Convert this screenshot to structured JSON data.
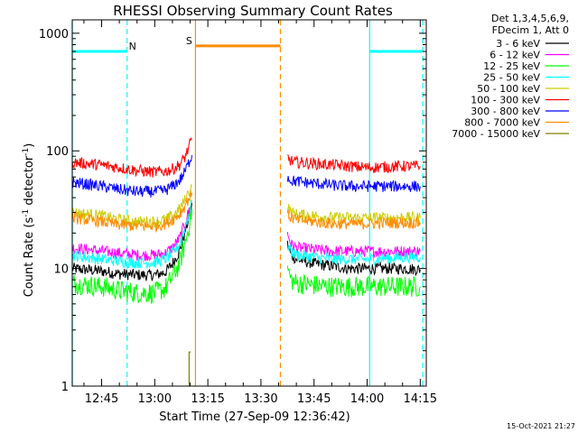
{
  "chart_data": {
    "type": "line",
    "title": "RHESSI Observing Summary Count Rates",
    "xlabel": "Start Time (27-Sep-09 12:36:42)",
    "ylabel_main": "Count Rate (s",
    "ylabel_sup1": "-1",
    "ylabel_mid": " detector",
    "ylabel_sup2": "-1",
    "ylabel_end": ")",
    "y_scale": "log",
    "ylim": [
      1,
      1000
    ],
    "xlim": [
      "12:36",
      "14:16"
    ],
    "xticks": [
      "12:45",
      "13:00",
      "13:15",
      "13:30",
      "13:45",
      "14:00",
      "14:15"
    ],
    "xticks_minutes": [
      45,
      60,
      75,
      90,
      105,
      120,
      135
    ],
    "yticks": [
      "1",
      "10",
      "100",
      "1000"
    ],
    "yticks_values": [
      1,
      10,
      100,
      1000
    ],
    "legend_header": [
      "Det 1,3,4,5,6,9,",
      "FDecim 1, Att 0"
    ],
    "series": [
      {
        "name": "3 - 6 keV",
        "color": "#000000",
        "x": [
          36.7,
          45,
          50,
          55,
          60,
          63,
          65,
          67,
          68.5,
          69.5,
          70.5,
          97.5,
          98.5,
          100,
          105,
          110,
          115,
          120,
          125,
          130,
          135
        ],
        "y": [
          10,
          9.5,
          9,
          8.8,
          8.8,
          9.3,
          11,
          14,
          20,
          26,
          36,
          16,
          13,
          12,
          11,
          10.5,
          10,
          10,
          10,
          10,
          9.8
        ]
      },
      {
        "name": "6 - 12 keV",
        "color": "#ff00ff",
        "x": [
          36.7,
          45,
          50,
          55,
          60,
          63,
          65,
          67,
          68.5,
          69.5,
          70.5,
          97.5,
          98.5,
          100,
          105,
          110,
          115,
          120,
          125,
          130,
          135
        ],
        "y": [
          15,
          14,
          13.5,
          13,
          13,
          13.5,
          15,
          18,
          24,
          30,
          38,
          20,
          16,
          15,
          14.5,
          14,
          14,
          14,
          14,
          14,
          14
        ]
      },
      {
        "name": "12 - 25 keV",
        "color": "#00ff00",
        "x": [
          36.7,
          45,
          50,
          55,
          60,
          63,
          65,
          67,
          68.5,
          69.5,
          70.5,
          97.5,
          98.5,
          100,
          105,
          110,
          115,
          120,
          125,
          130,
          135
        ],
        "y": [
          7.5,
          7,
          6.5,
          6.2,
          6.2,
          6.8,
          8.5,
          11,
          16,
          22,
          32,
          10,
          8,
          7.5,
          7.2,
          7,
          7,
          7,
          7,
          7,
          7
        ]
      },
      {
        "name": "25 - 50 keV",
        "color": "#00ffff",
        "x": [
          36.7,
          45,
          50,
          55,
          60,
          63,
          65,
          67,
          68.5,
          69.5,
          70.5,
          97.5,
          98.5,
          100,
          105,
          110,
          115,
          120,
          125,
          130,
          135
        ],
        "y": [
          13,
          12,
          11.5,
          11.2,
          11.2,
          12,
          13.5,
          16,
          22,
          28,
          36,
          16,
          14,
          13,
          12.5,
          12,
          12,
          12,
          12.2,
          12.5,
          12.5
        ]
      },
      {
        "name": "50 - 100 keV",
        "color": "#cccc00",
        "x": [
          36.7,
          45,
          50,
          55,
          60,
          63,
          65,
          67,
          68.5,
          69.5,
          70.5,
          97.5,
          98.5,
          100,
          105,
          110,
          115,
          120,
          125,
          130,
          135
        ],
        "y": [
          30,
          28,
          26,
          25,
          25,
          26,
          28,
          32,
          38,
          44,
          50,
          34,
          30,
          29,
          28,
          27,
          27,
          27,
          27,
          27,
          27
        ]
      },
      {
        "name": "100 - 300 keV",
        "color": "#ff0000",
        "x": [
          36.7,
          45,
          50,
          55,
          60,
          63,
          65,
          67,
          68.5,
          69.5,
          70.5,
          97.5,
          98.5,
          100,
          105,
          110,
          115,
          120,
          125,
          130,
          135
        ],
        "y": [
          80,
          76,
          72,
          68,
          66,
          67,
          70,
          76,
          88,
          105,
          125,
          88,
          82,
          80,
          78,
          76,
          74,
          72,
          73,
          74,
          74
        ]
      },
      {
        "name": "300 - 800 keV",
        "color": "#0000ff",
        "x": [
          36.7,
          45,
          50,
          55,
          60,
          63,
          65,
          67,
          68.5,
          69.5,
          70.5,
          97.5,
          98.5,
          100,
          105,
          110,
          115,
          120,
          125,
          130,
          135
        ],
        "y": [
          54,
          50,
          47,
          45,
          45,
          46,
          50,
          56,
          66,
          78,
          92,
          60,
          56,
          55,
          53,
          51,
          50,
          50,
          50,
          50,
          50
        ]
      },
      {
        "name": "800 - 7000 keV",
        "color": "#ff8c00",
        "x": [
          36.7,
          45,
          50,
          55,
          60,
          63,
          65,
          67,
          68.5,
          69.5,
          70.5,
          97.5,
          98.5,
          100,
          105,
          110,
          115,
          120,
          125,
          130,
          135
        ],
        "y": [
          27,
          25,
          23.5,
          23,
          23,
          24,
          26,
          29,
          34,
          39,
          44,
          29,
          27,
          26,
          25,
          24,
          24,
          24,
          24.5,
          24.5,
          24.5
        ]
      },
      {
        "name": "7000 - 15000 keV",
        "color": "#808000",
        "x": [
          69.7,
          69.7,
          70.2
        ],
        "y": [
          1,
          1.95,
          1.95
        ]
      }
    ],
    "markers": [
      {
        "label": "N",
        "color": "#00ffff",
        "start_min": 36.7,
        "end_min": 52.2,
        "level": 700
      },
      {
        "label": "S",
        "color": "#ff8c00",
        "start_min": 71.5,
        "end_min": 95.5,
        "level": 780
      },
      {
        "label": "",
        "color": "#00ffff",
        "start_min": 120.7,
        "end_min": 135.7,
        "level": 700
      }
    ],
    "vlines": [
      {
        "min": 36.7,
        "color": "#00ffff",
        "dash": false
      },
      {
        "min": 52.2,
        "color": "#00ffff",
        "dash": true
      },
      {
        "min": 71.5,
        "color": "#ff8c00",
        "dash": false
      },
      {
        "min": 95.5,
        "color": "#ff8c00",
        "dash": true
      },
      {
        "min": 120.7,
        "color": "#00ffff",
        "dash": false
      },
      {
        "min": 135.7,
        "color": "#00ffff",
        "dash": true
      }
    ],
    "footer": "15-Oct-2021 21:27"
  }
}
